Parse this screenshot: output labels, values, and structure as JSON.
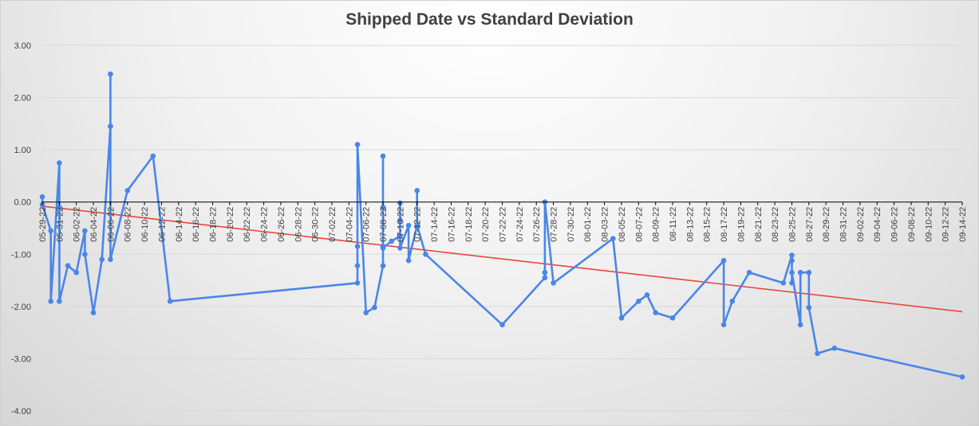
{
  "chart_data": {
    "type": "line",
    "title": "Shipped Date vs Standard Deviation",
    "xlabel": "",
    "ylabel": "",
    "ylim": [
      -4,
      3
    ],
    "yticks": [
      3,
      2,
      1,
      0,
      -1,
      -2,
      -3,
      -4
    ],
    "ytick_labels": [
      "3.00",
      "2.00",
      "1.00",
      "0.00",
      "-1.00",
      "-2.00",
      "-3.00",
      "-4.00"
    ],
    "xlim": [
      "2022-05-29",
      "2022-09-14"
    ],
    "xtick_labels": [
      "05-29-22",
      "05-31-22",
      "06-02-22",
      "06-04-22",
      "06-06-22",
      "06-08-22",
      "06-10-22",
      "06-12-22",
      "06-14-22",
      "06-16-22",
      "06-18-22",
      "06-20-22",
      "06-22-22",
      "06-24-22",
      "06-26-22",
      "06-28-22",
      "06-30-22",
      "07-02-22",
      "07-04-22",
      "07-06-22",
      "07-08-22",
      "07-10-22",
      "07-12-22",
      "07-14-22",
      "07-16-22",
      "07-18-22",
      "07-20-22",
      "07-22-22",
      "07-24-22",
      "07-26-22",
      "07-28-22",
      "07-30-22",
      "08-01-22",
      "08-03-22",
      "08-05-22",
      "08-07-22",
      "08-09-22",
      "08-11-22",
      "08-13-22",
      "08-15-22",
      "08-17-22",
      "08-19-22",
      "08-21-22",
      "08-23-22",
      "08-25-22",
      "08-27-22",
      "08-29-22",
      "08-31-22",
      "09-02-22",
      "09-04-22",
      "09-06-22",
      "09-08-22",
      "09-10-22",
      "09-12-22",
      "09-14-22"
    ],
    "grid": true,
    "colors": {
      "series": "#4a86e8",
      "trend": "#e8473a",
      "grid": "#d9d9d9",
      "zero_axis": "#000000"
    },
    "series": [
      {
        "x": [
          "2022-05-29",
          "2022-05-29",
          "2022-05-30",
          "2022-05-30",
          "2022-05-31",
          "2022-05-31",
          "2022-05-31",
          "2022-06-01",
          "2022-06-02",
          "2022-06-03",
          "2022-06-03",
          "2022-06-04",
          "2022-06-05",
          "2022-06-06",
          "2022-06-06",
          "2022-06-06",
          "2022-06-06",
          "2022-06-08",
          "2022-06-11",
          "2022-06-13",
          "2022-07-05",
          "2022-07-05",
          "2022-07-05",
          "2022-07-05",
          "2022-07-06",
          "2022-07-07",
          "2022-07-08",
          "2022-07-08",
          "2022-07-08",
          "2022-07-08",
          "2022-07-08",
          "2022-07-08",
          "2022-07-09",
          "2022-07-10",
          "2022-07-10",
          "2022-07-10",
          "2022-07-10",
          "2022-07-11",
          "2022-07-11",
          "2022-07-12",
          "2022-07-12",
          "2022-07-12",
          "2022-07-13",
          "2022-07-22",
          "2022-07-27",
          "2022-07-27",
          "2022-07-27",
          "2022-07-28",
          "2022-08-04",
          "2022-08-05",
          "2022-08-07",
          "2022-08-08",
          "2022-08-09",
          "2022-08-11",
          "2022-08-17",
          "2022-08-17",
          "2022-08-18",
          "2022-08-20",
          "2022-08-24",
          "2022-08-25",
          "2022-08-25",
          "2022-08-25",
          "2022-08-25",
          "2022-08-26",
          "2022-08-26",
          "2022-08-27",
          "2022-08-27",
          "2022-08-28",
          "2022-08-30",
          "2022-09-14"
        ],
        "values": [
          0.1,
          -0.05,
          -0.55,
          -1.9,
          0.75,
          -0.1,
          -1.9,
          -1.22,
          -1.35,
          -0.55,
          -1.0,
          -2.12,
          -1.1,
          1.45,
          2.45,
          1.45,
          -1.1,
          0.22,
          0.88,
          -1.9,
          -1.55,
          -1.22,
          -0.85,
          1.1,
          -2.12,
          -2.02,
          -1.22,
          -0.85,
          0.88,
          -0.1,
          -0.85,
          -0.88,
          -0.75,
          -0.65,
          -0.02,
          -0.35,
          -0.88,
          -0.45,
          -1.12,
          -0.45,
          0.22,
          -0.45,
          -1.0,
          -2.35,
          -1.45,
          -1.35,
          0.0,
          -1.55,
          -0.7,
          -2.22,
          -1.9,
          -1.78,
          -2.12,
          -2.22,
          -1.12,
          -2.35,
          -1.9,
          -1.35,
          -1.55,
          -1.02,
          -1.12,
          -1.55,
          -1.35,
          -2.35,
          -1.35,
          -1.35,
          -2.02,
          -2.9,
          -2.8,
          -3.35
        ]
      }
    ],
    "trendline": {
      "x": [
        "2022-05-29",
        "2022-09-14"
      ],
      "values": [
        -0.08,
        -2.1
      ]
    }
  }
}
